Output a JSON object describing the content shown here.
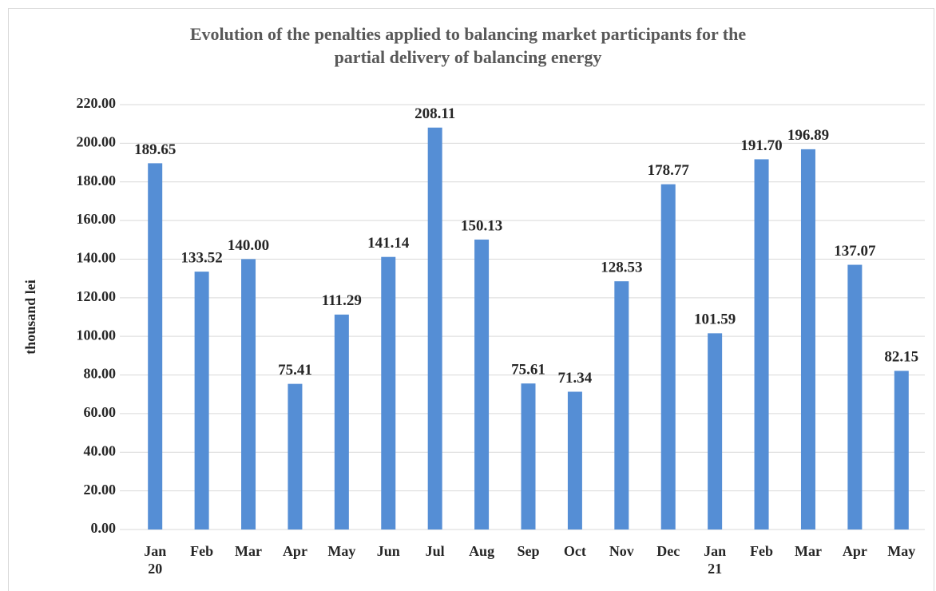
{
  "chart_data": {
    "type": "bar",
    "title": "Evolution of the penalties applied to balancing market participants for the partial delivery of balancing energy",
    "y_label": "thousand lei",
    "categories": [
      "Jan 20",
      "Feb",
      "Mar",
      "Apr",
      "May",
      "Jun",
      "Jul",
      "Aug",
      "Sep",
      "Oct",
      "Nov",
      "Dec",
      "Jan 21",
      "Feb",
      "Mar",
      "Apr",
      "May"
    ],
    "values": [
      189.65,
      133.52,
      140,
      75.41,
      111.29,
      141.14,
      208.11,
      150.13,
      75.61,
      71.34,
      128.53,
      178.77,
      101.59,
      191.7,
      196.89,
      137.07,
      82.15
    ],
    "value_labels": [
      "189.65",
      "133.52",
      "140.00",
      "75.41",
      "111.29",
      "141.14",
      "208.11",
      "150.13",
      "75.61",
      "71.34",
      "128.53",
      "178.77",
      "101.59",
      "191.70",
      "196.89",
      "137.07",
      "82.15"
    ],
    "color": "#558ed5",
    "ylim": [
      0,
      220
    ],
    "yticks": [
      {
        "value": 0,
        "label": "0.00"
      },
      {
        "value": 20,
        "label": "20.00"
      },
      {
        "value": 40,
        "label": "40.00"
      },
      {
        "value": 60,
        "label": "60.00"
      },
      {
        "value": 80,
        "label": "80.00"
      },
      {
        "value": 100,
        "label": "100.00"
      },
      {
        "value": 120,
        "label": "120.00"
      },
      {
        "value": 140,
        "label": "140.00"
      },
      {
        "value": 160,
        "label": "160.00"
      },
      {
        "value": 180,
        "label": "180.00"
      },
      {
        "value": 200,
        "label": "200.00"
      },
      {
        "value": 220,
        "label": "220.00"
      }
    ],
    "grid": true
  }
}
